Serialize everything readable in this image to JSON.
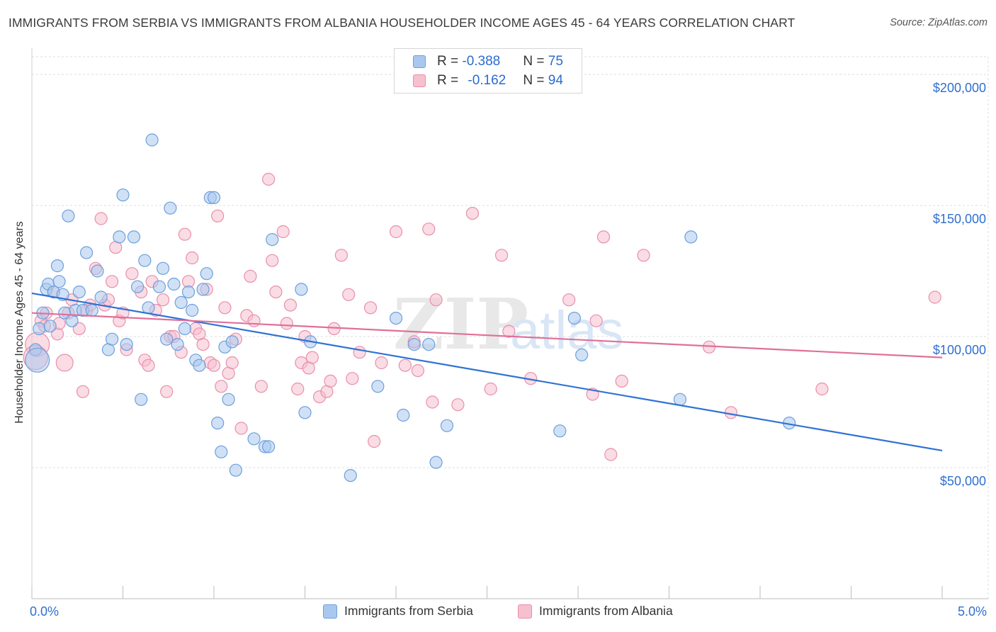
{
  "title": "IMMIGRANTS FROM SERBIA VS IMMIGRANTS FROM ALBANIA HOUSEHOLDER INCOME AGES 45 - 64 YEARS CORRELATION CHART",
  "source": "Source: ZipAtlas.com",
  "watermark": {
    "zip": "ZIP",
    "atlas": "atlas"
  },
  "legend": {
    "serbia": {
      "r_label": "R = ",
      "r_value": "-0.388",
      "n_label": "N = ",
      "n_value": "75"
    },
    "albania": {
      "r_label": "R = ",
      "r_value": "-0.162",
      "n_label": "N = ",
      "n_value": "94"
    }
  },
  "colors": {
    "serbia_fill": "#a9c8ef",
    "serbia_stroke": "#6d9fdc",
    "serbia_line": "#2f72d4",
    "albania_fill": "#f6c0cf",
    "albania_stroke": "#e98fab",
    "albania_line": "#e0709a",
    "tick_label": "#2f6fd1",
    "grid": "#dcdcdc"
  },
  "chart_data": {
    "type": "scatter",
    "xlabel": "",
    "ylabel": "Householder Income Ages 45 - 64 years",
    "xlim": [
      0,
      5
    ],
    "ylim": [
      0,
      210000
    ],
    "x_tick_labels": [
      {
        "v": 0,
        "label": "0.0%"
      },
      {
        "v": 5,
        "label": "5.0%"
      }
    ],
    "y_ticks": [
      50000,
      100000,
      150000,
      200000
    ],
    "y_tick_labels": [
      "$50,000",
      "$100,000",
      "$150,000",
      "$200,000"
    ],
    "grid": true,
    "legend_position": "top-center",
    "series": [
      {
        "name": "Immigrants from Serbia",
        "trend": {
          "x": [
            0,
            5
          ],
          "y": [
            116500,
            56500
          ]
        },
        "points": [
          [
            0.02,
            95000,
            1
          ],
          [
            0.04,
            103000,
            1
          ],
          [
            0.06,
            109000,
            1
          ],
          [
            0.08,
            118000,
            1
          ],
          [
            0.09,
            120000,
            1
          ],
          [
            0.1,
            104000,
            1
          ],
          [
            0.12,
            117000,
            1
          ],
          [
            0.14,
            127000,
            1
          ],
          [
            0.15,
            121000,
            1
          ],
          [
            0.17,
            116000,
            1
          ],
          [
            0.18,
            109000,
            1
          ],
          [
            0.2,
            146000,
            1
          ],
          [
            0.22,
            106000,
            1
          ],
          [
            0.24,
            110000,
            1
          ],
          [
            0.26,
            117000,
            1
          ],
          [
            0.28,
            110000,
            1
          ],
          [
            0.3,
            132000,
            1
          ],
          [
            0.33,
            110000,
            1
          ],
          [
            0.36,
            125000,
            1
          ],
          [
            0.38,
            115000,
            1
          ],
          [
            0.42,
            95000,
            1
          ],
          [
            0.44,
            99000,
            1
          ],
          [
            0.48,
            138000,
            1
          ],
          [
            0.5,
            154000,
            1
          ],
          [
            0.52,
            97000,
            1
          ],
          [
            0.56,
            138000,
            1
          ],
          [
            0.58,
            119000,
            1
          ],
          [
            0.6,
            76000,
            1
          ],
          [
            0.62,
            129000,
            1
          ],
          [
            0.64,
            111000,
            1
          ],
          [
            0.66,
            175000,
            1
          ],
          [
            0.7,
            119000,
            1
          ],
          [
            0.72,
            126000,
            1
          ],
          [
            0.74,
            99000,
            1
          ],
          [
            0.76,
            149000,
            1
          ],
          [
            0.78,
            120000,
            1
          ],
          [
            0.8,
            97000,
            1
          ],
          [
            0.82,
            113000,
            1
          ],
          [
            0.84,
            103000,
            1
          ],
          [
            0.86,
            117000,
            1
          ],
          [
            0.88,
            110000,
            1
          ],
          [
            0.9,
            91000,
            1
          ],
          [
            0.92,
            89000,
            1
          ],
          [
            0.94,
            118000,
            1
          ],
          [
            0.96,
            124000,
            1
          ],
          [
            0.98,
            153000,
            1
          ],
          [
            1.0,
            153000,
            1
          ],
          [
            1.02,
            67000,
            1
          ],
          [
            1.04,
            56000,
            1
          ],
          [
            1.06,
            96000,
            1
          ],
          [
            1.08,
            76000,
            1
          ],
          [
            1.1,
            98000,
            1
          ],
          [
            1.12,
            49000,
            1
          ],
          [
            1.22,
            61000,
            1
          ],
          [
            1.28,
            58000,
            1
          ],
          [
            1.3,
            58000,
            1
          ],
          [
            1.32,
            137000,
            1
          ],
          [
            1.48,
            118000,
            1
          ],
          [
            1.5,
            71000,
            1
          ],
          [
            1.53,
            98000,
            1
          ],
          [
            1.75,
            47000,
            1
          ],
          [
            1.9,
            81000,
            1
          ],
          [
            2.0,
            107000,
            1
          ],
          [
            2.04,
            70000,
            1
          ],
          [
            2.1,
            97000,
            1
          ],
          [
            2.18,
            97000,
            1
          ],
          [
            2.22,
            52000,
            1
          ],
          [
            2.28,
            66000,
            1
          ],
          [
            2.9,
            64000,
            1
          ],
          [
            2.98,
            107000,
            1
          ],
          [
            3.02,
            93000,
            1
          ],
          [
            3.56,
            76000,
            1
          ],
          [
            3.62,
            138000,
            1
          ],
          [
            4.16,
            67000,
            1
          ],
          [
            0.03,
            91000,
            2
          ]
        ]
      },
      {
        "name": "Immigrants from Albania",
        "trend": {
          "x": [
            0,
            5
          ],
          "y": [
            109000,
            92000
          ]
        },
        "points": [
          [
            0.03,
            97000,
            2
          ],
          [
            0.05,
            106000,
            1
          ],
          [
            0.07,
            104000,
            1
          ],
          [
            0.08,
            109000,
            1
          ],
          [
            0.12,
            117000,
            1
          ],
          [
            0.14,
            101000,
            1
          ],
          [
            0.15,
            105000,
            1
          ],
          [
            0.18,
            90000,
            1.4
          ],
          [
            0.2,
            109000,
            1
          ],
          [
            0.22,
            114000,
            1
          ],
          [
            0.26,
            103000,
            1
          ],
          [
            0.28,
            79000,
            1
          ],
          [
            0.3,
            110000,
            1
          ],
          [
            0.32,
            112000,
            1
          ],
          [
            0.35,
            126000,
            1
          ],
          [
            0.38,
            145000,
            1
          ],
          [
            0.4,
            112000,
            1
          ],
          [
            0.42,
            114000,
            1
          ],
          [
            0.44,
            121000,
            1
          ],
          [
            0.46,
            134000,
            1
          ],
          [
            0.48,
            106000,
            1
          ],
          [
            0.5,
            109000,
            1
          ],
          [
            0.52,
            95000,
            1
          ],
          [
            0.55,
            124000,
            1
          ],
          [
            0.6,
            117000,
            1
          ],
          [
            0.62,
            91000,
            1
          ],
          [
            0.64,
            89000,
            1
          ],
          [
            0.66,
            121000,
            1
          ],
          [
            0.68,
            110000,
            1
          ],
          [
            0.72,
            114000,
            1
          ],
          [
            0.74,
            79000,
            1
          ],
          [
            0.76,
            100000,
            1
          ],
          [
            0.78,
            100000,
            1
          ],
          [
            0.82,
            94000,
            1
          ],
          [
            0.84,
            139000,
            1
          ],
          [
            0.86,
            121000,
            1
          ],
          [
            0.88,
            130000,
            1
          ],
          [
            0.9,
            103000,
            1
          ],
          [
            0.92,
            101000,
            1
          ],
          [
            0.94,
            97000,
            1
          ],
          [
            0.96,
            118000,
            1
          ],
          [
            0.98,
            90000,
            1
          ],
          [
            1.0,
            89000,
            1
          ],
          [
            1.02,
            146000,
            1
          ],
          [
            1.04,
            81000,
            1
          ],
          [
            1.06,
            111000,
            1
          ],
          [
            1.08,
            86000,
            1
          ],
          [
            1.1,
            90000,
            1
          ],
          [
            1.12,
            99000,
            1
          ],
          [
            1.15,
            65000,
            1
          ],
          [
            1.18,
            108000,
            1
          ],
          [
            1.2,
            123000,
            1
          ],
          [
            1.22,
            106000,
            1
          ],
          [
            1.26,
            81000,
            1
          ],
          [
            1.3,
            160000,
            1
          ],
          [
            1.32,
            129000,
            1
          ],
          [
            1.34,
            117000,
            1
          ],
          [
            1.38,
            140000,
            1
          ],
          [
            1.4,
            105000,
            1
          ],
          [
            1.42,
            112000,
            1
          ],
          [
            1.46,
            80000,
            1
          ],
          [
            1.48,
            90000,
            1
          ],
          [
            1.5,
            100000,
            1
          ],
          [
            1.52,
            88000,
            1
          ],
          [
            1.54,
            92000,
            1
          ],
          [
            1.58,
            77000,
            1
          ],
          [
            1.62,
            79000,
            1
          ],
          [
            1.64,
            83000,
            1
          ],
          [
            1.66,
            103000,
            1
          ],
          [
            1.7,
            131000,
            1
          ],
          [
            1.74,
            116000,
            1
          ],
          [
            1.76,
            84000,
            1
          ],
          [
            1.8,
            94000,
            1
          ],
          [
            1.86,
            111000,
            1
          ],
          [
            1.88,
            60000,
            1
          ],
          [
            1.92,
            90000,
            1
          ],
          [
            2.0,
            140000,
            1
          ],
          [
            2.05,
            89000,
            1
          ],
          [
            2.1,
            98000,
            1
          ],
          [
            2.12,
            87000,
            1
          ],
          [
            2.18,
            141000,
            1
          ],
          [
            2.2,
            75000,
            1
          ],
          [
            2.22,
            114000,
            1
          ],
          [
            2.34,
            74000,
            1
          ],
          [
            2.42,
            147000,
            1
          ],
          [
            2.52,
            80000,
            1
          ],
          [
            2.58,
            131000,
            1
          ],
          [
            2.62,
            102000,
            1
          ],
          [
            2.74,
            84000,
            1
          ],
          [
            2.95,
            114000,
            1
          ],
          [
            3.08,
            78000,
            1
          ],
          [
            3.1,
            106000,
            1
          ],
          [
            3.14,
            138000,
            1
          ],
          [
            3.18,
            55000,
            1
          ],
          [
            3.24,
            83000,
            1
          ],
          [
            3.36,
            131000,
            1
          ],
          [
            3.72,
            96000,
            1
          ],
          [
            3.84,
            71000,
            1
          ],
          [
            4.34,
            80000,
            1
          ],
          [
            4.96,
            115000,
            1
          ],
          [
            0.02,
            92000,
            2
          ]
        ]
      }
    ]
  },
  "bottom_legend": {
    "serbia": "Immigrants from Serbia",
    "albania": "Immigrants from Albania"
  }
}
